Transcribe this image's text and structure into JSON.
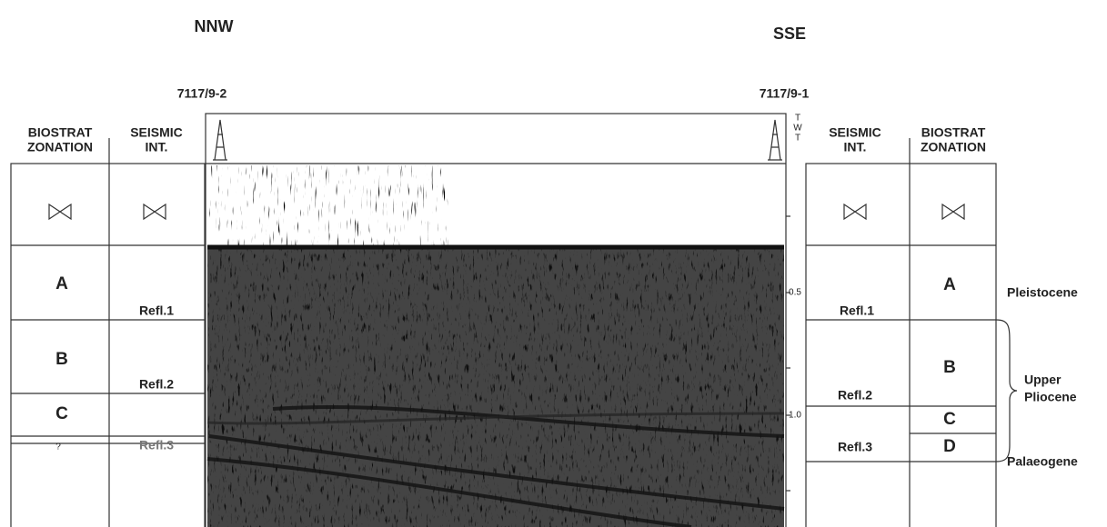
{
  "header": {
    "left_direction": "NNW",
    "right_direction": "SSE"
  },
  "wells": {
    "left": "7117/9-2",
    "right": "7117/9-1"
  },
  "left_columns": {
    "biostrat": [
      "BIOSTRAT",
      "ZONATION"
    ],
    "seismic": [
      "SEISMIC",
      "INT."
    ]
  },
  "right_columns": {
    "seismic": [
      "SEISMIC",
      "INT."
    ],
    "biostrat": [
      "BIOSTRAT",
      "ZONATION"
    ]
  },
  "left_biostrat_zones": [
    "A",
    "B",
    "C",
    "?"
  ],
  "left_seismic_reflectors": [
    "Refl.1",
    "Refl.2",
    "Refl.3"
  ],
  "twt_axis": {
    "label": [
      "T",
      "W",
      "T"
    ],
    "ticks": [
      "0.5",
      "1.0"
    ]
  },
  "right_seismic_reflectors": [
    "Refl.1",
    "Refl.2",
    "Refl.3"
  ],
  "right_biostrat_zones": [
    "A",
    "B",
    "C",
    "D"
  ],
  "epochs": {
    "pleistocene": "Pleistocene",
    "upper_pliocene": [
      "Upper",
      "Pliocene"
    ],
    "palaeogene": "Palaeogene"
  }
}
